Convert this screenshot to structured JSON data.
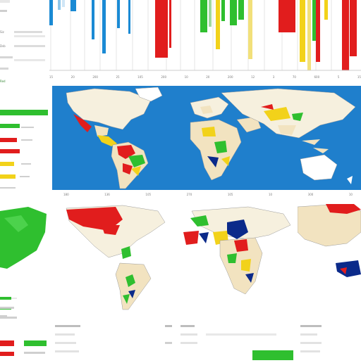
{
  "colors": {
    "ocean": "#1f7fcc",
    "land": "#f2e3c0",
    "red": "#e11d1d",
    "green": "#2fbf2f",
    "yellow": "#f2d21a",
    "blue": "#1a8ad4",
    "dark_blue": "#0b2a8a",
    "white": "#ffffff"
  },
  "top_chart_labels": {
    "row_a": [
      "Siz",
      "Dsb"
    ],
    "tick_row": [
      "15",
      "20",
      "200",
      "25",
      "105",
      "200",
      "10",
      "20",
      "200",
      "12",
      "3",
      "70",
      "600",
      "5",
      "15"
    ]
  },
  "left_panel": {
    "small_label": "Red",
    "bars": [
      {
        "color": "green"
      },
      {
        "color": "red"
      },
      {
        "color": "red"
      },
      {
        "color": "yellow"
      },
      {
        "color": "yellow"
      }
    ]
  },
  "bottom_tick_row": [
    "180",
    "136",
    "105",
    "270",
    "105",
    "10",
    "300",
    "10"
  ],
  "bottom_left_legend": {
    "bars": [
      {
        "color": "green"
      },
      {
        "color": "red"
      },
      {
        "color": "red"
      }
    ]
  },
  "icons": {
    "world_map_main": "world-map",
    "world_map_americas": "world-map",
    "world_map_africa": "world-map",
    "world_map_asia": "world-map"
  }
}
